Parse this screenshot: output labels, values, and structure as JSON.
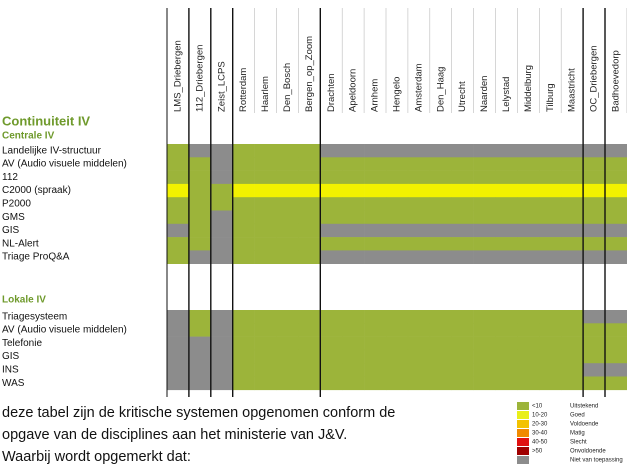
{
  "columns": [
    "LMS_Driebergen",
    "112_Driebergen",
    "Zeist_LCPS",
    "Rotterdam",
    "Haarlem",
    "Den_Bosch",
    "Bergen_op_Zoom",
    "Drachten",
    "Apeldoorn",
    "Arnhem",
    "Hengelo",
    "Amsterdam",
    "Den_Haag",
    "Utrecht",
    "Naarden",
    "Lelystad",
    "Middelburg",
    "Tilburg",
    "Maastricht",
    "OC_Driebergen",
    "Badhoevedorp"
  ],
  "sections": [
    {
      "heading": "Continuiteit IV",
      "subheading": "Centrale IV",
      "rows": [
        {
          "label": "Landelijke IV-structuur",
          "cells": [
            "#9cb43a",
            "#8c8c8c",
            "#8c8c8c",
            "#9cb43a",
            "#9cb43a",
            "#9cb43a",
            "#9cb43a",
            "#8c8c8c",
            "#8c8c8c",
            "#8c8c8c",
            "#8c8c8c",
            "#8c8c8c",
            "#8c8c8c",
            "#8c8c8c",
            "#8c8c8c",
            "#8c8c8c",
            "#8c8c8c",
            "#8c8c8c",
            "#8c8c8c",
            "#8c8c8c",
            "#8c8c8c"
          ]
        },
        {
          "label": "AV (Audio visuele middelen)",
          "cells": [
            "#9cb43a",
            "#9cb43a",
            "#8c8c8c",
            "#9cb43a",
            "#9cb43a",
            "#9cb43a",
            "#9cb43a",
            "#9cb43a",
            "#9cb43a",
            "#9cb43a",
            "#9cb43a",
            "#9cb43a",
            "#9cb43a",
            "#9cb43a",
            "#9cb43a",
            "#9cb43a",
            "#9cb43a",
            "#9cb43a",
            "#9cb43a",
            "#9cb43a",
            "#9cb43a"
          ]
        },
        {
          "label": "112",
          "cells": [
            "#9cb43a",
            "#9cb43a",
            "#8c8c8c",
            "#9cb43a",
            "#9cb43a",
            "#9cb43a",
            "#9cb43a",
            "#9cb43a",
            "#9cb43a",
            "#9cb43a",
            "#9cb43a",
            "#9cb43a",
            "#9cb43a",
            "#9cb43a",
            "#9cb43a",
            "#9cb43a",
            "#9cb43a",
            "#9cb43a",
            "#9cb43a",
            "#9cb43a",
            "#9cb43a"
          ]
        },
        {
          "label": "C2000 (spraak)",
          "cells": [
            "#f2f200",
            "#9cb43a",
            "#9cb43a",
            "#f2f200",
            "#f2f200",
            "#f2f200",
            "#f2f200",
            "#f2f200",
            "#f2f200",
            "#f2f200",
            "#f2f200",
            "#f2f200",
            "#f2f200",
            "#f2f200",
            "#f2f200",
            "#f2f200",
            "#f2f200",
            "#f2f200",
            "#f2f200",
            "#f2f200",
            "#f2f200"
          ]
        },
        {
          "label": "P2000",
          "cells": [
            "#9cb43a",
            "#9cb43a",
            "#9cb43a",
            "#9cb43a",
            "#9cb43a",
            "#9cb43a",
            "#9cb43a",
            "#9cb43a",
            "#9cb43a",
            "#9cb43a",
            "#9cb43a",
            "#9cb43a",
            "#9cb43a",
            "#9cb43a",
            "#9cb43a",
            "#9cb43a",
            "#9cb43a",
            "#9cb43a",
            "#9cb43a",
            "#9cb43a",
            "#9cb43a"
          ]
        },
        {
          "label": "GMS",
          "cells": [
            "#9cb43a",
            "#9cb43a",
            "#8c8c8c",
            "#9cb43a",
            "#9cb43a",
            "#9cb43a",
            "#9cb43a",
            "#9cb43a",
            "#9cb43a",
            "#9cb43a",
            "#9cb43a",
            "#9cb43a",
            "#9cb43a",
            "#9cb43a",
            "#9cb43a",
            "#9cb43a",
            "#9cb43a",
            "#9cb43a",
            "#9cb43a",
            "#9cb43a",
            "#9cb43a"
          ]
        },
        {
          "label": "GIS",
          "cells": [
            "#8c8c8c",
            "#9cb43a",
            "#8c8c8c",
            "#9cb43a",
            "#9cb43a",
            "#9cb43a",
            "#9cb43a",
            "#8c8c8c",
            "#8c8c8c",
            "#8c8c8c",
            "#8c8c8c",
            "#8c8c8c",
            "#8c8c8c",
            "#8c8c8c",
            "#8c8c8c",
            "#8c8c8c",
            "#8c8c8c",
            "#8c8c8c",
            "#8c8c8c",
            "#8c8c8c",
            "#8c8c8c"
          ]
        },
        {
          "label": "NL-Alert",
          "cells": [
            "#9cb43a",
            "#9cb43a",
            "#8c8c8c",
            "#9cb43a",
            "#9cb43a",
            "#9cb43a",
            "#9cb43a",
            "#9cb43a",
            "#9cb43a",
            "#9cb43a",
            "#9cb43a",
            "#9cb43a",
            "#9cb43a",
            "#9cb43a",
            "#9cb43a",
            "#9cb43a",
            "#9cb43a",
            "#9cb43a",
            "#9cb43a",
            "#9cb43a",
            "#9cb43a"
          ]
        },
        {
          "label": "Triage ProQ&A",
          "cells": [
            "#9cb43a",
            "#8c8c8c",
            "#8c8c8c",
            "#9cb43a",
            "#9cb43a",
            "#9cb43a",
            "#9cb43a",
            "#8c8c8c",
            "#8c8c8c",
            "#8c8c8c",
            "#8c8c8c",
            "#8c8c8c",
            "#8c8c8c",
            "#8c8c8c",
            "#8c8c8c",
            "#8c8c8c",
            "#8c8c8c",
            "#8c8c8c",
            "#8c8c8c",
            "#8c8c8c",
            "#8c8c8c"
          ]
        }
      ]
    },
    {
      "subheading": "Lokale IV",
      "rows": [
        {
          "label": "Triagesysteem",
          "cells": [
            "#8c8c8c",
            "#9cb43a",
            "#8c8c8c",
            "#9cb43a",
            "#9cb43a",
            "#9cb43a",
            "#9cb43a",
            "#9cb43a",
            "#9cb43a",
            "#9cb43a",
            "#9cb43a",
            "#9cb43a",
            "#9cb43a",
            "#9cb43a",
            "#9cb43a",
            "#9cb43a",
            "#9cb43a",
            "#9cb43a",
            "#9cb43a",
            "#8c8c8c",
            "#8c8c8c"
          ]
        },
        {
          "label": "AV (Audio visuele middelen)",
          "cells": [
            "#8c8c8c",
            "#9cb43a",
            "#8c8c8c",
            "#9cb43a",
            "#9cb43a",
            "#9cb43a",
            "#9cb43a",
            "#9cb43a",
            "#9cb43a",
            "#9cb43a",
            "#9cb43a",
            "#9cb43a",
            "#9cb43a",
            "#9cb43a",
            "#9cb43a",
            "#9cb43a",
            "#9cb43a",
            "#9cb43a",
            "#9cb43a",
            "#9cb43a",
            "#9cb43a"
          ]
        },
        {
          "label": "Telefonie",
          "cells": [
            "#8c8c8c",
            "#8c8c8c",
            "#8c8c8c",
            "#9cb43a",
            "#9cb43a",
            "#9cb43a",
            "#9cb43a",
            "#9cb43a",
            "#9cb43a",
            "#9cb43a",
            "#9cb43a",
            "#9cb43a",
            "#9cb43a",
            "#9cb43a",
            "#9cb43a",
            "#9cb43a",
            "#9cb43a",
            "#9cb43a",
            "#9cb43a",
            "#9cb43a",
            "#9cb43a"
          ]
        },
        {
          "label": "GIS",
          "cells": [
            "#8c8c8c",
            "#8c8c8c",
            "#8c8c8c",
            "#9cb43a",
            "#9cb43a",
            "#9cb43a",
            "#9cb43a",
            "#9cb43a",
            "#9cb43a",
            "#9cb43a",
            "#9cb43a",
            "#9cb43a",
            "#9cb43a",
            "#9cb43a",
            "#9cb43a",
            "#9cb43a",
            "#9cb43a",
            "#9cb43a",
            "#9cb43a",
            "#9cb43a",
            "#9cb43a"
          ]
        },
        {
          "label": "INS",
          "cells": [
            "#8c8c8c",
            "#8c8c8c",
            "#8c8c8c",
            "#9cb43a",
            "#9cb43a",
            "#9cb43a",
            "#9cb43a",
            "#9cb43a",
            "#9cb43a",
            "#9cb43a",
            "#9cb43a",
            "#9cb43a",
            "#9cb43a",
            "#9cb43a",
            "#9cb43a",
            "#9cb43a",
            "#9cb43a",
            "#9cb43a",
            "#9cb43a",
            "#8c8c8c",
            "#8c8c8c"
          ]
        },
        {
          "label": "WAS",
          "cells": [
            "#8c8c8c",
            "#8c8c8c",
            "#8c8c8c",
            "#9cb43a",
            "#9cb43a",
            "#9cb43a",
            "#9cb43a",
            "#9cb43a",
            "#9cb43a",
            "#9cb43a",
            "#9cb43a",
            "#9cb43a",
            "#9cb43a",
            "#9cb43a",
            "#9cb43a",
            "#9cb43a",
            "#9cb43a",
            "#9cb43a",
            "#9cb43a",
            "#9cb43a",
            "#9cb43a"
          ]
        }
      ]
    }
  ],
  "text": [
    "deze tabel zijn de kritische systemen opgenomen conform de",
    "opgave van de disciplines aan het ministerie van J&V.",
    "Waarbij wordt opgemerkt dat:"
  ],
  "legend": [
    {
      "range": "<10",
      "label": "Uitstekend",
      "color": "#9cb43a"
    },
    {
      "range": "10-20",
      "label": "Goed",
      "color": "#e9ef1a"
    },
    {
      "range": "20-30",
      "label": "Voldoende",
      "color": "#f3c200"
    },
    {
      "range": "30-40",
      "label": "Matig",
      "color": "#f08a00"
    },
    {
      "range": "40-50",
      "label": "Slecht",
      "color": "#e01010"
    },
    {
      "range": ">50",
      "label": "Onvoldoende",
      "color": "#a00000"
    },
    {
      "range": "",
      "label": "Niet van toepassing",
      "color": "#8c8c8c"
    }
  ]
}
